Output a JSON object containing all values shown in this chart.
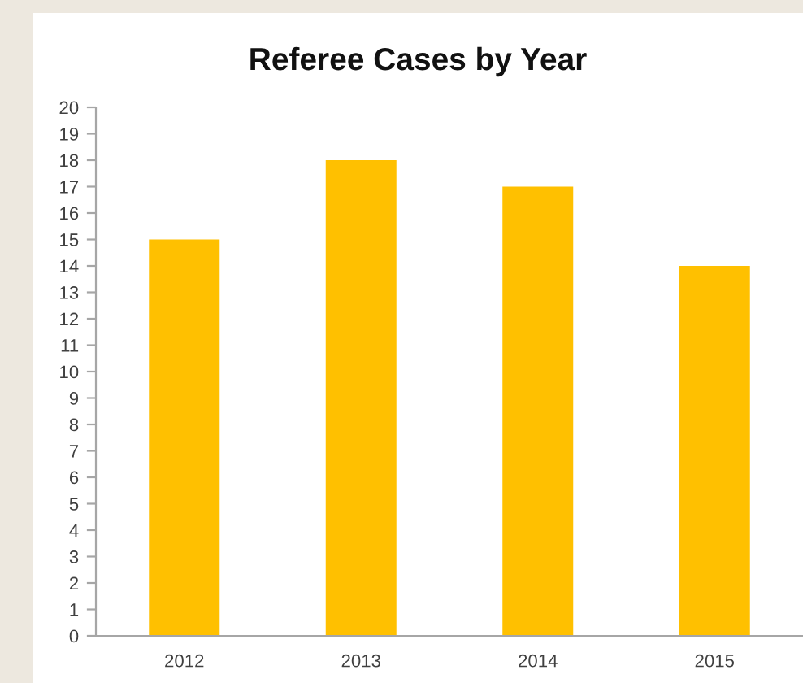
{
  "chart_data": {
    "type": "bar",
    "title": "Referee Cases by Year",
    "categories": [
      "2012",
      "2013",
      "2014",
      "2015"
    ],
    "values": [
      15,
      18,
      17,
      14
    ],
    "color": "#ffc000",
    "ylim": [
      0,
      20
    ],
    "yticks": [
      0,
      1,
      2,
      3,
      4,
      5,
      6,
      7,
      8,
      9,
      10,
      11,
      12,
      13,
      14,
      15,
      16,
      17,
      18,
      19,
      20
    ],
    "grid": false
  }
}
